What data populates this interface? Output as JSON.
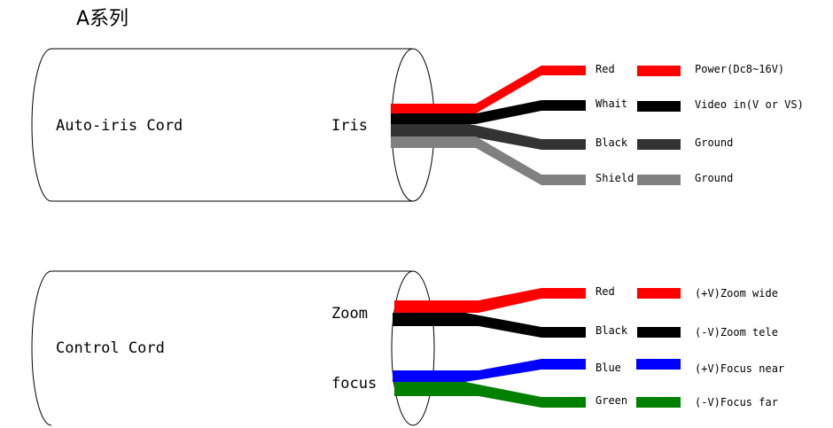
{
  "title": "A系列",
  "cables": [
    {
      "name": "Auto-iris Cord",
      "group_labels": [
        "Iris"
      ],
      "wires": [
        {
          "color_name": "Red",
          "color": "#ff0000",
          "function": "Power(Dc8~16V)"
        },
        {
          "color_name": "Whait",
          "color": "#000000",
          "function": "Video in(V or VS)"
        },
        {
          "color_name": "Black",
          "color": "#333333",
          "function": "Ground"
        },
        {
          "color_name": "Shield",
          "color": "#808080",
          "function": "Ground"
        }
      ]
    },
    {
      "name": "Control Cord",
      "group_labels": [
        "Zoom",
        "focus"
      ],
      "wires": [
        {
          "color_name": "Red",
          "color": "#ff0000",
          "function": "(+V)Zoom wide"
        },
        {
          "color_name": "Black",
          "color": "#000000",
          "function": "(-V)Zoom tele"
        },
        {
          "color_name": "Blue",
          "color": "#0000ff",
          "function": "(+V)Focus near"
        },
        {
          "color_name": "Green",
          "color": "#008000",
          "function": "(-V)Focus far"
        }
      ]
    }
  ]
}
